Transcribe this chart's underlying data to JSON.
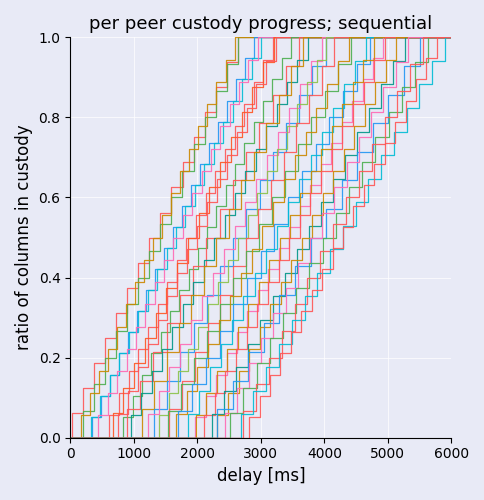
{
  "title": "per peer custody progress; sequential",
  "xlabel": "delay [ms]",
  "ylabel": "ratio of columns in custody",
  "xlim": [
    0,
    6000
  ],
  "ylim": [
    0.0,
    1.0
  ],
  "n_peers": 32,
  "x_max": 6000,
  "colors": [
    "#FF5555",
    "#4CAF50",
    "#CC8800",
    "#2196F3",
    "#00BCD4",
    "#FF69B4",
    "#FF5555",
    "#FF5522",
    "#FF5555",
    "#4CAF50",
    "#FF5555",
    "#009688",
    "#CC8800",
    "#2196F3",
    "#FF69B4",
    "#8BC34A",
    "#FF5555",
    "#4CAF50",
    "#CC8800",
    "#2196F3",
    "#00BCD4",
    "#FF69B4",
    "#CC8800",
    "#FF5555",
    "#009688",
    "#CC8800",
    "#2196F3",
    "#FF69B4",
    "#4CAF50",
    "#FF5555",
    "#00BCD4",
    "#FF5555"
  ],
  "background_color": "#E8EAF6",
  "seed": 42
}
